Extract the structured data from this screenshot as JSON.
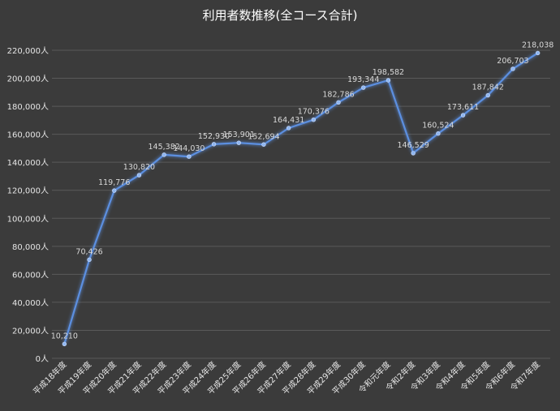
{
  "chart_data": {
    "type": "line",
    "title": "利用者数推移(全コース合計)",
    "xlabel": "",
    "ylabel": "",
    "categories": [
      "平成18年度",
      "平成19年度",
      "平成20年度",
      "平成21年度",
      "平成22年度",
      "平成23年度",
      "平成24年度",
      "平成25年度",
      "平成26年度",
      "平成27年度",
      "平成28年度",
      "平成29年度",
      "平成30年度",
      "令和元年度",
      "令和2年度",
      "令和3年度",
      "令和4年度",
      "令和5年度",
      "令和6年度",
      "令和7年度"
    ],
    "series": [
      {
        "values": [
          10210,
          70426,
          119776,
          130820,
          145382,
          144030,
          152930,
          153901,
          152694,
          164431,
          170376,
          182786,
          193344,
          198582,
          146529,
          160524,
          173611,
          187842,
          206703,
          218038
        ],
        "labels": [
          "10,210",
          "70,426",
          "119,776",
          "130,820",
          "145,382",
          "144,030",
          "152,930",
          "153,901",
          "152,694",
          "164,431",
          "170,376",
          "182,786",
          "193,344",
          "198,582",
          "146,529",
          "160,524",
          "173,611",
          "187,842",
          "206,703",
          "218,038"
        ]
      }
    ],
    "ylim": [
      0,
      220000
    ],
    "yticks": [
      0,
      20000,
      40000,
      60000,
      80000,
      100000,
      120000,
      140000,
      160000,
      180000,
      200000,
      220000
    ],
    "ytick_labels": [
      "0人",
      "20,000人",
      "40,000人",
      "60,000人",
      "80,000人",
      "100,000人",
      "120,000人",
      "140,000人",
      "160,000人",
      "180,000人",
      "200,000人",
      "220,000人"
    ],
    "grid": true,
    "colors": {
      "background": "#3b3b3b",
      "line": "#5b8fe0",
      "grid": "#5a5a5a",
      "text": "#e6e6e6"
    }
  }
}
